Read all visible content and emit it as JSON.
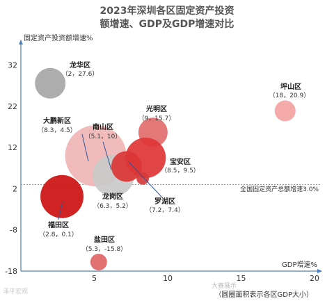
{
  "chart_data": {
    "type": "bubble",
    "title_line1": "2023年深圳各区固定资产投资",
    "title_line2": "额增速、GDP及GDP增速对比",
    "ylabel": "固定资产投资额增速%",
    "xlabel": "GDP增速%",
    "note": "（圆圈面积表示各区GDP大小）",
    "xlim": [
      0,
      20
    ],
    "ylim": [
      -18,
      36
    ],
    "x_ticks": [
      0,
      5,
      10,
      15,
      20
    ],
    "y_ticks": [
      32,
      22,
      12,
      2,
      -8,
      -18
    ],
    "reference_line": {
      "value": 3.0,
      "label": "全国固定资产总额增速3.0%"
    },
    "points": [
      {
        "name": "龙华区",
        "x": 2,
        "y": 27.6,
        "label": "（2，27.6）",
        "color": "#a6a6a6"
      },
      {
        "name": "坪山区",
        "x": 18,
        "y": 20.9,
        "label": "（18，20.9）",
        "color": "#f4a3a3"
      },
      {
        "name": "光明区",
        "x": 9,
        "y": 15.7,
        "label": "（9，15.7）",
        "color": "#e26b6b"
      },
      {
        "name": "大鹏新区",
        "x": 8.3,
        "y": 4.5,
        "label": "（8.3，4.5）",
        "color": "#d63b3b"
      },
      {
        "name": "南山区",
        "x": 5.1,
        "y": 10,
        "label": "（5.1，10）",
        "color": "#f0b5b5"
      },
      {
        "name": "宝安区",
        "x": 8.5,
        "y": 9.5,
        "label": "（8.5，9.5）",
        "color": "#e03535"
      },
      {
        "name": "龙岗区",
        "x": 6.3,
        "y": 5.2,
        "label": "（6.3，5.2）",
        "color": "#c9c9c9"
      },
      {
        "name": "罗湖区",
        "x": 7.2,
        "y": 7.4,
        "label": "（7.2，7.4）",
        "color": "#db3535"
      },
      {
        "name": "福田区",
        "x": 2.8,
        "y": 0.1,
        "label": "（2.8，0.1）",
        "color": "#cc1111"
      },
      {
        "name": "盐田区",
        "x": 5.3,
        "y": -15.8,
        "label": "（5.3，-15.8）",
        "color": "#e06666"
      }
    ]
  },
  "watermark": "泽平宏观",
  "watermark2": "大赛展示"
}
